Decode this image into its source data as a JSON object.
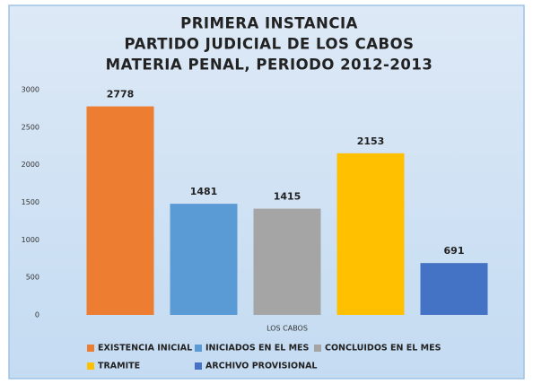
{
  "chart_data": {
    "type": "bar",
    "title": [
      "PRIMERA INSTANCIA",
      "PARTIDO JUDICIAL DE LOS CABOS",
      "MATERIA PENAL, PERIODO 2012-2013"
    ],
    "categories": [
      "LOS CABOS"
    ],
    "series": [
      {
        "name": "EXISTENCIA INICIAL",
        "color": "#ed7d31",
        "values": [
          2778
        ]
      },
      {
        "name": "INICIADOS EN EL MES",
        "color": "#5b9bd5",
        "values": [
          1481
        ]
      },
      {
        "name": "CONCLUIDOS EN EL MES",
        "color": "#a5a5a5",
        "values": [
          1415
        ]
      },
      {
        "name": "TRAMITE",
        "color": "#ffc000",
        "values": [
          2153
        ]
      },
      {
        "name": "ARCHIVO PROVISIONAL",
        "color": "#4472c4",
        "values": [
          691
        ]
      }
    ],
    "ylim": [
      0,
      3000
    ],
    "yticks": [
      0,
      500,
      1000,
      1500,
      2000,
      2500,
      3000
    ],
    "grid": false,
    "legend": "bottom"
  }
}
